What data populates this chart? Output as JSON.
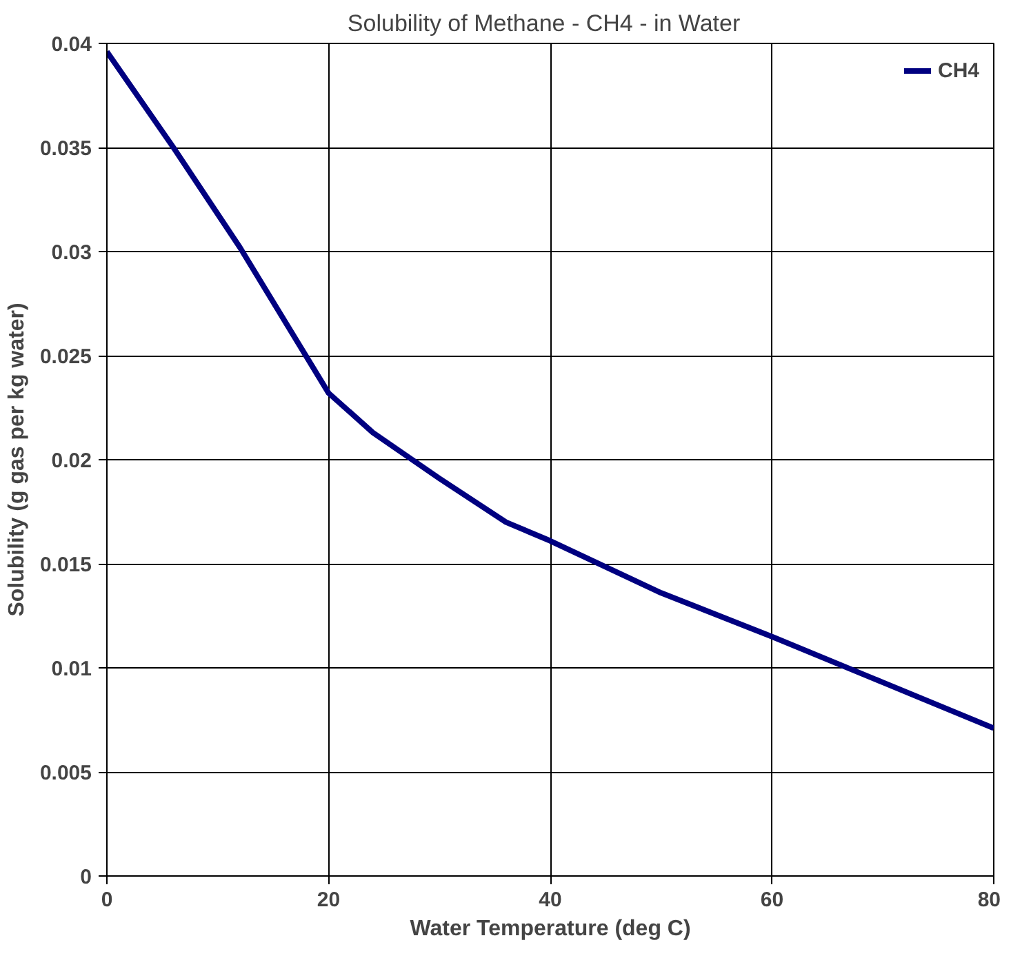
{
  "chart_data": {
    "type": "line",
    "title": "Solubility of  Methane - CH4  - in Water",
    "xlabel": "Water Temperature (deg C)",
    "ylabel": "Solubility (g gas per kg water)",
    "x": [
      0,
      6,
      12,
      20,
      24,
      30,
      36,
      40,
      50,
      60,
      70,
      80
    ],
    "series": [
      {
        "name": "CH4",
        "color": "#000080",
        "values": [
          0.0396,
          0.035,
          0.0302,
          0.0232,
          0.0213,
          0.0191,
          0.017,
          0.0161,
          0.0136,
          0.0115,
          0.0093,
          0.0071
        ]
      }
    ],
    "xlim": [
      0,
      80
    ],
    "xticks": [
      0,
      20,
      40,
      60,
      80
    ],
    "ylim": [
      0,
      0.04
    ],
    "yticks": [
      {
        "value": 0,
        "label": "0"
      },
      {
        "value": 0.005,
        "label": "0.005"
      },
      {
        "value": 0.01,
        "label": "0.01"
      },
      {
        "value": 0.015,
        "label": "0.015"
      },
      {
        "value": 0.02,
        "label": "0.02"
      },
      {
        "value": 0.025,
        "label": "0.025"
      },
      {
        "value": 0.03,
        "label": "0.03"
      },
      {
        "value": 0.035,
        "label": "0.035"
      },
      {
        "value": 0.04,
        "label": "0.04"
      }
    ],
    "grid": true,
    "legend": "top right"
  }
}
